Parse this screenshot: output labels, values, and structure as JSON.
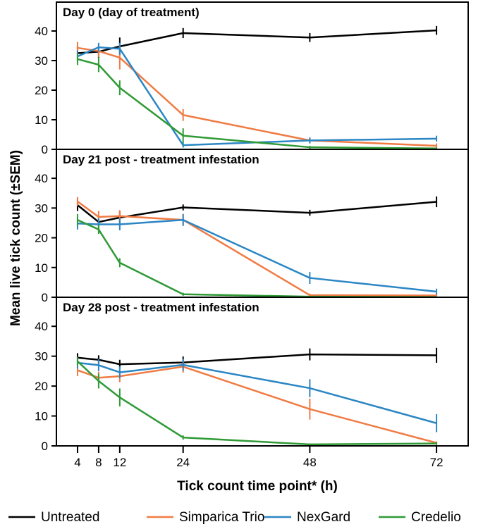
{
  "chart_data": {
    "type": "line",
    "ylabel": "Mean live tick count (±SEM)",
    "xlabel": "Tick count time point* (h)",
    "x": [
      4,
      8,
      12,
      24,
      48,
      72
    ],
    "x_ticks": [
      "4",
      "8",
      "12",
      "24",
      "48",
      "72"
    ],
    "ylim": [
      0,
      45
    ],
    "y_ticks": [
      0,
      10,
      20,
      30,
      40
    ],
    "grid": false,
    "legend_position": "bottom",
    "colors": {
      "Untreated": "#000000",
      "Simparica Trio": "#f07b43",
      "NexGard": "#2b86c4",
      "Credelio": "#2f9a36"
    },
    "legend": [
      "Untreated",
      "Simparica Trio",
      "NexGard",
      "Credelio"
    ],
    "panels": [
      {
        "title": "Day 0 (day of treatment)",
        "series": [
          {
            "name": "Untreated",
            "values": [
              32.5,
              33.0,
              34.8,
              39.3,
              37.8,
              40.2
            ],
            "err": [
              2.5,
              2.0,
              3.0,
              1.7,
              1.5,
              1.5
            ]
          },
          {
            "name": "Simparica Trio",
            "values": [
              34.3,
              33.2,
              31.0,
              11.6,
              3.0,
              1.2
            ],
            "err": [
              2.0,
              2.0,
              4.0,
              2.0,
              1.0,
              0.8
            ]
          },
          {
            "name": "NexGard",
            "values": [
              31.4,
              34.5,
              34.0,
              1.4,
              3.0,
              3.6
            ],
            "err": [
              2.0,
              1.5,
              2.0,
              0.8,
              1.0,
              1.0
            ]
          },
          {
            "name": "Credelio",
            "values": [
              30.5,
              28.6,
              20.8,
              4.6,
              0.7,
              0.3
            ],
            "err": [
              2.0,
              2.5,
              2.5,
              2.5,
              0.5,
              0.3
            ]
          }
        ]
      },
      {
        "title": "Day 21 post - treatment infestation",
        "series": [
          {
            "name": "Untreated",
            "values": [
              31.0,
              25.3,
              26.8,
              30.2,
              28.4,
              32.1
            ],
            "err": [
              2.0,
              1.5,
              2.0,
              1.0,
              1.0,
              1.8
            ]
          },
          {
            "name": "Simparica Trio",
            "values": [
              32.2,
              27.0,
              27.3,
              26.0,
              0.7,
              0.6
            ],
            "err": [
              1.5,
              2.0,
              2.0,
              2.0,
              0.5,
              0.4
            ]
          },
          {
            "name": "NexGard",
            "values": [
              24.8,
              24.5,
              24.5,
              26.0,
              6.5,
              1.9
            ],
            "err": [
              2.0,
              2.0,
              2.0,
              2.0,
              2.0,
              1.0
            ]
          },
          {
            "name": "Credelio",
            "values": [
              26.0,
              22.8,
              11.6,
              1.0,
              0.2,
              0.1
            ],
            "err": [
              2.0,
              1.5,
              1.5,
              0.5,
              0.2,
              0.1
            ]
          }
        ]
      },
      {
        "title": "Day 28 post - treatment infestation",
        "series": [
          {
            "name": "Untreated",
            "values": [
              29.5,
              28.8,
              27.3,
              27.9,
              30.6,
              30.3
            ],
            "err": [
              1.5,
              1.5,
              1.5,
              2.0,
              2.0,
              2.5
            ]
          },
          {
            "name": "Simparica Trio",
            "values": [
              25.3,
              22.8,
              23.3,
              26.5,
              12.3,
              1.0
            ],
            "err": [
              2.0,
              2.0,
              2.0,
              2.0,
              3.5,
              0.5
            ]
          },
          {
            "name": "NexGard",
            "values": [
              27.8,
              27.0,
              24.6,
              27.1,
              19.3,
              7.6
            ],
            "err": [
              2.0,
              2.0,
              2.0,
              2.0,
              3.0,
              3.0
            ]
          },
          {
            "name": "Credelio",
            "values": [
              28.3,
              21.7,
              16.2,
              2.8,
              0.5,
              0.8
            ],
            "err": [
              1.5,
              2.5,
              3.0,
              0.7,
              0.3,
              0.5
            ]
          }
        ]
      }
    ]
  }
}
